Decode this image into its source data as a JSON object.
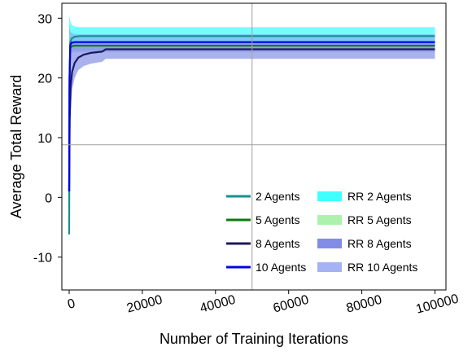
{
  "chart_data": {
    "type": "line",
    "title": "",
    "xlabel": "Number of Training Iterations",
    "ylabel": "Average Total Reward",
    "xlim": [
      -2000,
      103000
    ],
    "ylim": [
      -15.5,
      32.5
    ],
    "xticks": [
      0,
      20000,
      40000,
      60000,
      80000,
      100000
    ],
    "xtick_labels": [
      "0",
      "20000",
      "40000",
      "60000",
      "80000",
      "100000"
    ],
    "yticks": [
      -10,
      0,
      10,
      20,
      30
    ],
    "ytick_labels": [
      "-10",
      "0",
      "10",
      "20",
      "30"
    ],
    "crosshair": {
      "x": 50000,
      "y": 8.8
    },
    "legend_position": "bottom-right",
    "series": [
      {
        "name": "2 Agents",
        "color": "#1a8f8f",
        "x": [
          0,
          100,
          300,
          700,
          1500,
          3000,
          100000
        ],
        "y": [
          -6.2,
          18,
          26,
          26.6,
          26.9,
          27.0,
          27.0
        ]
      },
      {
        "name": "5 Agents",
        "color": "#0d7a0d",
        "x": [
          0,
          100,
          300,
          700,
          1500,
          3000,
          100000
        ],
        "y": [
          1.0,
          20,
          25.0,
          25.3,
          25.4,
          25.4,
          25.4
        ]
      },
      {
        "name": "8 Agents",
        "color": "#1a1a5e",
        "x": [
          0,
          150,
          400,
          800,
          1500,
          2500,
          4000,
          6000,
          9000,
          10000,
          100000
        ],
        "y": [
          1.0,
          13,
          18.5,
          21,
          22.5,
          23.4,
          23.9,
          24.2,
          24.4,
          24.8,
          24.8
        ]
      },
      {
        "name": "10 Agents",
        "color": "#0000e6",
        "x": [
          0,
          100,
          300,
          700,
          1500,
          3000,
          100000
        ],
        "y": [
          1.0,
          20,
          25.5,
          25.9,
          26.0,
          26.0,
          26.0
        ]
      }
    ],
    "bands": [
      {
        "name": "RR 2 Agents",
        "color": "#00ffff",
        "opacity": 0.55,
        "x": [
          0,
          300,
          700,
          1500,
          3000,
          100000
        ],
        "lower": [
          24,
          25.4,
          25.6,
          25.6,
          25.6,
          25.6
        ],
        "upper": [
          30.5,
          29.5,
          28.9,
          28.6,
          28.5,
          28.5
        ]
      },
      {
        "name": "RR 5 Agents",
        "color": "#90ee90",
        "opacity": 0.5,
        "x": [
          0,
          300,
          700,
          1500,
          3000,
          100000
        ],
        "lower": [
          23,
          24.2,
          24.5,
          24.6,
          24.6,
          24.6
        ],
        "upper": [
          28,
          26.8,
          26.4,
          26.2,
          26.2,
          26.2
        ]
      },
      {
        "name": "RR 8 Agents",
        "color": "#5566dd",
        "opacity": 0.5,
        "x": [
          0,
          150,
          400,
          800,
          1500,
          2500,
          4000,
          6000,
          9000,
          10000,
          100000
        ],
        "lower": [
          -2,
          8,
          14,
          18,
          20,
          21.3,
          22,
          22.4,
          22.7,
          23.2,
          23.2
        ],
        "upper": [
          26,
          26,
          26,
          26,
          26,
          26,
          26,
          26,
          26,
          26,
          26
        ]
      },
      {
        "name": "RR 10 Agents",
        "color": "#8899ee",
        "opacity": 0.55,
        "x": [
          0,
          300,
          700,
          1500,
          3000,
          100000
        ],
        "lower": [
          21,
          23.8,
          24.2,
          24.3,
          24.3,
          24.3
        ],
        "upper": [
          29,
          27.8,
          27.5,
          27.3,
          27.3,
          27.3
        ]
      }
    ]
  }
}
